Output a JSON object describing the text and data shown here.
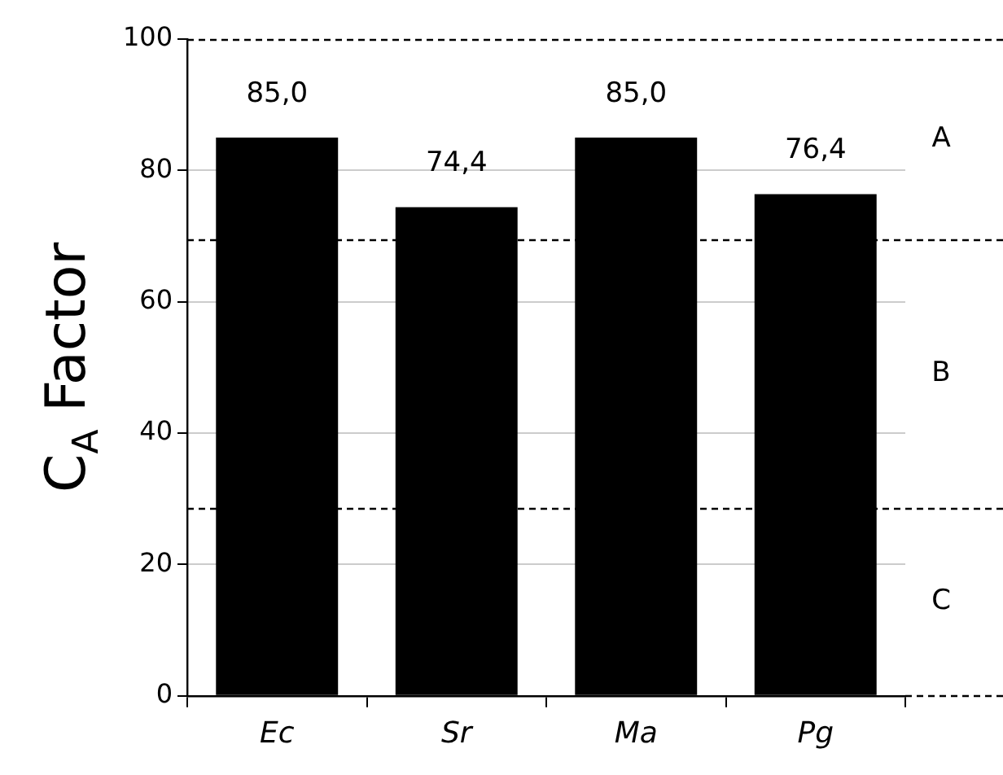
{
  "chart_data": {
    "type": "bar",
    "ylabel": "C$_{A}$ Factor",
    "categories": [
      "Ec",
      "Sr",
      "Ma",
      "Pg"
    ],
    "values": [
      85.0,
      74.4,
      85.0,
      76.4
    ],
    "value_labels": [
      "85,0",
      "74,4",
      "85,0",
      "76,4"
    ],
    "color": "#000000",
    "ylim": [
      0,
      100
    ],
    "yticks": [
      0,
      20,
      40,
      60,
      80,
      100
    ],
    "grid": "y",
    "ref_lines": [
      {
        "axis": "y",
        "value": 100,
        "line_style": "dashed"
      },
      {
        "axis": "y",
        "value": 69.5,
        "line_style": "dashed"
      },
      {
        "axis": "y",
        "value": 28.6,
        "line_style": "dashed"
      }
    ],
    "annotations": [
      "A",
      "B",
      "C"
    ]
  }
}
